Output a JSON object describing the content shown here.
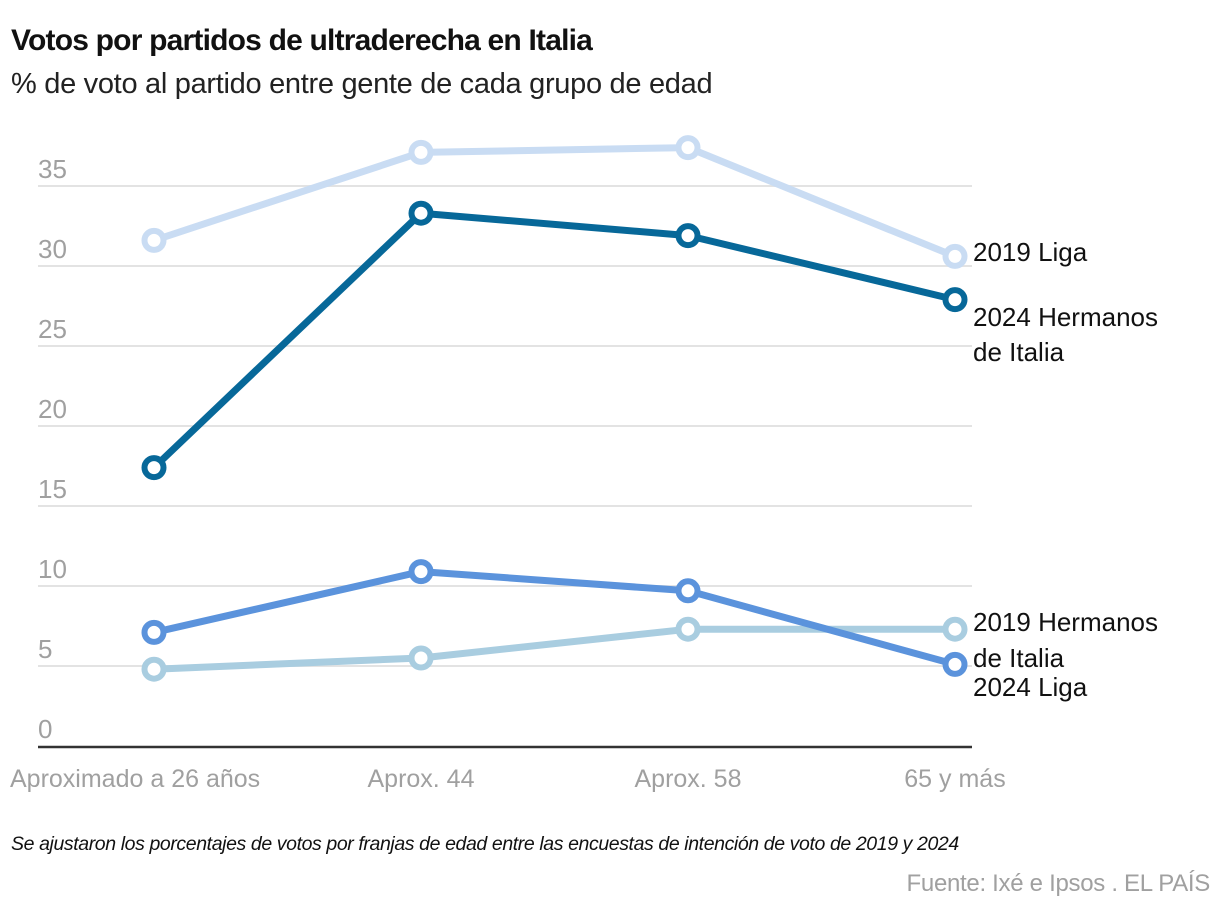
{
  "header": {
    "title": "Votos por partidos de ultraderecha en Italia",
    "subtitle": "% de voto al partido entre gente de cada grupo de edad"
  },
  "footer": {
    "note": "Se ajustaron los porcentajes de votos por franjas de edad entre las encuestas de intención de voto de 2019 y 2024",
    "source": "Fuente: Ixé e Ipsos . EL PAÍS"
  },
  "chart_data": {
    "type": "line",
    "title": "Votos por partidos de ultraderecha en Italia",
    "subtitle": "% de voto al partido entre gente de cada grupo de edad",
    "xlabel": "",
    "ylabel": "",
    "categories": [
      "Aproximado a 26 años",
      "Aprox. 44",
      "Aprox. 58",
      "65 y más"
    ],
    "yticks": [
      0,
      5,
      10,
      15,
      20,
      25,
      30,
      35
    ],
    "ylim": [
      0,
      38
    ],
    "grid": true,
    "legend": "direct labels at right end of lines",
    "series": [
      {
        "name": "2019 Liga",
        "label_lines": [
          "2019 Liga"
        ],
        "color": "#c9dcf3",
        "values": [
          31.6,
          37.1,
          37.4,
          30.6
        ]
      },
      {
        "name": "2024 Hermanos de Italia",
        "label_lines": [
          "2024 Hermanos",
          "de Italia"
        ],
        "color": "#076899",
        "values": [
          17.4,
          33.3,
          31.9,
          27.9
        ]
      },
      {
        "name": "2019 Hermanos de Italia",
        "label_lines": [
          "2019 Hermanos",
          "de Italia"
        ],
        "color": "#a9cde0",
        "values": [
          4.8,
          5.5,
          7.3,
          7.3
        ]
      },
      {
        "name": "2024 Liga",
        "label_lines": [
          "2024 Liga"
        ],
        "color": "#5b93dc",
        "values": [
          7.1,
          10.9,
          9.7,
          5.1
        ]
      }
    ]
  }
}
